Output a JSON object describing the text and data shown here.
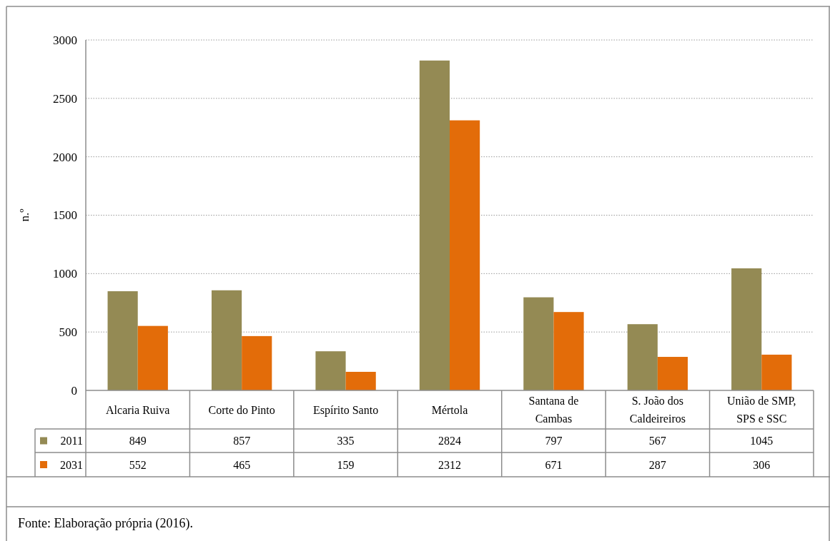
{
  "chart_data": {
    "type": "bar",
    "categories": [
      "Alcaria Ruiva",
      "Corte do Pinto",
      "Espírito Santo",
      "Mértola",
      "Santana de Cambas",
      "S. João dos Caldeireiros",
      "União de SMP, SPS e SSC"
    ],
    "series": [
      {
        "name": "2011",
        "color": "#948a54",
        "values": [
          849,
          857,
          335,
          2824,
          797,
          567,
          1045
        ]
      },
      {
        "name": "2031",
        "color": "#e36c09",
        "values": [
          552,
          465,
          159,
          2312,
          671,
          287,
          306
        ]
      }
    ],
    "ylabel": "n.º",
    "ylim": [
      0,
      3000
    ],
    "yticks": [
      0,
      500,
      1000,
      1500,
      2000,
      2500,
      3000
    ],
    "grid": "y",
    "legend": "bottom",
    "data_labels": true,
    "annotations": [
      "Fonte: Elaboração própria (2016)."
    ]
  }
}
